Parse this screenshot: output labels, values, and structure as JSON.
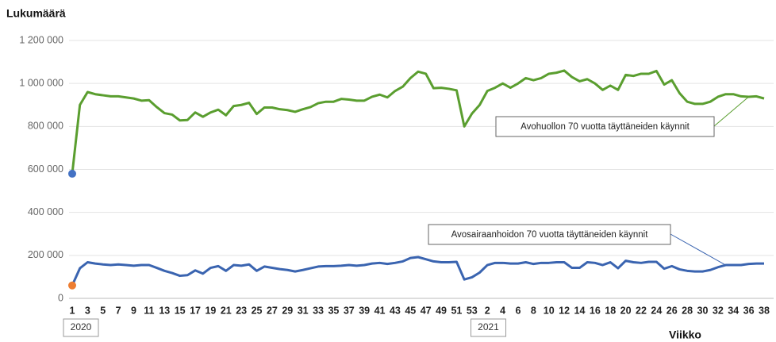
{
  "chart_data": {
    "type": "line",
    "y_label": "Lukumäärä",
    "x_label": "Viikko",
    "years": [
      "2020",
      "2021"
    ],
    "categories": [
      "1",
      null,
      "3",
      null,
      "5",
      null,
      "7",
      null,
      "9",
      null,
      "11",
      null,
      "13",
      null,
      "15",
      null,
      "17",
      null,
      "19",
      null,
      "21",
      null,
      "23",
      null,
      "25",
      null,
      "27",
      null,
      "29",
      null,
      "31",
      null,
      "33",
      null,
      "35",
      null,
      "37",
      null,
      "39",
      null,
      "41",
      null,
      "43",
      null,
      "45",
      null,
      "47",
      null,
      "49",
      null,
      "51",
      null,
      "53",
      null,
      "2",
      null,
      "4",
      null,
      "6",
      null,
      "8",
      null,
      "10",
      null,
      "12",
      null,
      "14",
      null,
      "16",
      null,
      "18",
      null,
      "20",
      null,
      "22",
      null,
      "24",
      null,
      "26",
      null,
      "28",
      null,
      "30",
      null,
      "32",
      null,
      "34",
      null,
      "36",
      null,
      "38"
    ],
    "series": [
      {
        "name": "Avohuollon 70 vuotta täyttäneiden käynnit",
        "color": "#5a9e2f",
        "first_point_color": "#4472c4",
        "values": [
          580000,
          900000,
          960000,
          950000,
          945000,
          940000,
          940000,
          935000,
          930000,
          920000,
          922000,
          890000,
          862000,
          855000,
          828000,
          830000,
          865000,
          845000,
          865000,
          878000,
          852000,
          895000,
          900000,
          910000,
          858000,
          888000,
          888000,
          880000,
          876000,
          868000,
          880000,
          890000,
          908000,
          915000,
          915000,
          928000,
          925000,
          920000,
          920000,
          938000,
          948000,
          935000,
          965000,
          985000,
          1025000,
          1055000,
          1045000,
          978000,
          980000,
          975000,
          968000,
          800000,
          860000,
          900000,
          965000,
          980000,
          1000000,
          980000,
          1000000,
          1025000,
          1015000,
          1025000,
          1045000,
          1050000,
          1060000,
          1030000,
          1010000,
          1020000,
          1000000,
          970000,
          990000,
          970000,
          1040000,
          1035000,
          1045000,
          1045000,
          1058000,
          995000,
          1015000,
          955000,
          915000,
          905000,
          905000,
          915000,
          938000,
          950000,
          950000,
          940000,
          938000,
          940000,
          930000
        ]
      },
      {
        "name": "Avosairaanhoidon 70 vuotta täyttäneiden käynnit",
        "color": "#3a64b0",
        "first_point_color": "#ed7d31",
        "values": [
          60000,
          140000,
          168000,
          162000,
          158000,
          155000,
          158000,
          155000,
          152000,
          155000,
          155000,
          142000,
          128000,
          118000,
          105000,
          108000,
          130000,
          115000,
          142000,
          150000,
          128000,
          155000,
          152000,
          158000,
          128000,
          148000,
          142000,
          136000,
          132000,
          125000,
          132000,
          140000,
          148000,
          150000,
          150000,
          152000,
          155000,
          152000,
          155000,
          162000,
          165000,
          160000,
          165000,
          172000,
          188000,
          192000,
          182000,
          172000,
          168000,
          168000,
          170000,
          88000,
          98000,
          120000,
          155000,
          165000,
          165000,
          162000,
          162000,
          168000,
          160000,
          165000,
          165000,
          168000,
          168000,
          142000,
          142000,
          168000,
          165000,
          155000,
          168000,
          140000,
          175000,
          168000,
          165000,
          170000,
          170000,
          138000,
          150000,
          135000,
          128000,
          125000,
          125000,
          132000,
          145000,
          155000,
          155000,
          155000,
          160000,
          162000,
          162000
        ]
      }
    ],
    "ylim": [
      0,
      1200000
    ],
    "yticks": [
      0,
      {
        "value": 200000,
        "label": "200 000"
      },
      {
        "value": 400000,
        "label": "400 000"
      },
      {
        "value": 600000,
        "label": "600 000"
      },
      {
        "value": 800000,
        "label": "800 000"
      },
      {
        "value": 1000000,
        "label": "1 000 000"
      },
      {
        "value": 1200000,
        "label": "1 200 000"
      }
    ],
    "grid": true
  }
}
